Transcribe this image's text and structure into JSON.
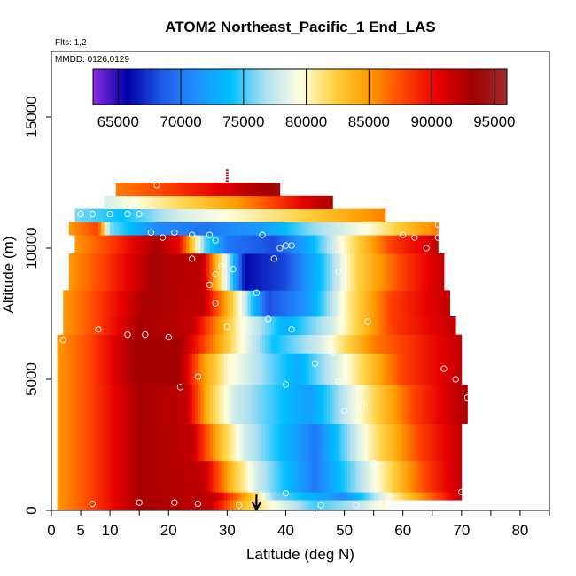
{
  "chart_data": {
    "type": "heatmap",
    "title": "ATOM2 Northeast_Pacific_1 End_LAS",
    "annotations": {
      "flights": "Flts: 1,2",
      "dates": "MMDD: 0126,0129"
    },
    "xlabel": "Latitude (deg N)",
    "ylabel": "Altitude (m)",
    "xlim": [
      0,
      85
    ],
    "ylim": [
      0,
      17500
    ],
    "x_ticks": [
      0,
      5,
      10,
      20,
      30,
      40,
      50,
      60,
      70,
      80
    ],
    "x_minor_ticks": [
      15,
      45,
      55,
      65,
      75,
      85
    ],
    "y_ticks": [
      0,
      5000,
      10000,
      15000
    ],
    "colorbar": {
      "range": [
        63000,
        96000
      ],
      "ticks": [
        65000,
        70000,
        75000,
        80000,
        85000,
        90000,
        95000
      ],
      "colors": [
        "#8a2be2",
        "#0000a8",
        "#1e5ae6",
        "#1e90ff",
        "#00bfff",
        "#b0e0f0",
        "#ffffe0",
        "#ffd040",
        "#ff9c00",
        "#ff4500",
        "#e60000",
        "#a00000",
        "#a52a2a"
      ]
    },
    "marker": {
      "latitude": 35,
      "label": "arrow"
    },
    "bands": [
      {
        "alt": [
          0,
          400
        ],
        "lat": [
          1,
          57
        ],
        "profile": [
          [
            1,
            85000
          ],
          [
            7,
            88000
          ],
          [
            15,
            93000
          ],
          [
            27,
            92000
          ],
          [
            33,
            83000
          ],
          [
            37,
            80000
          ],
          [
            45,
            75000
          ],
          [
            52,
            77000
          ],
          [
            57,
            80000
          ]
        ]
      },
      {
        "alt": [
          400,
          700
        ],
        "lat": [
          1,
          70
        ],
        "profile": [
          [
            1,
            85000
          ],
          [
            7,
            88000
          ],
          [
            15,
            93000
          ],
          [
            28,
            92000
          ],
          [
            34,
            83000
          ],
          [
            38,
            76000
          ],
          [
            50,
            71000
          ],
          [
            58,
            80000
          ],
          [
            66,
            88000
          ],
          [
            70,
            92000
          ]
        ]
      },
      {
        "alt": [
          700,
          1900
        ],
        "lat": [
          1,
          70
        ],
        "profile": [
          [
            1,
            85000
          ],
          [
            7,
            88000
          ],
          [
            15,
            93000
          ],
          [
            26,
            92000
          ],
          [
            31,
            83000
          ],
          [
            35,
            78000
          ],
          [
            45,
            70000
          ],
          [
            56,
            80000
          ],
          [
            64,
            88000
          ],
          [
            70,
            92000
          ]
        ]
      },
      {
        "alt": [
          1900,
          3300
        ],
        "lat": [
          1,
          70
        ],
        "profile": [
          [
            1,
            85000
          ],
          [
            7,
            88000
          ],
          [
            15,
            93000
          ],
          [
            24,
            92000
          ],
          [
            29,
            83000
          ],
          [
            33,
            78000
          ],
          [
            45,
            70000
          ],
          [
            54,
            80000
          ],
          [
            63,
            88000
          ],
          [
            70,
            92000
          ]
        ]
      },
      {
        "alt": [
          3300,
          4800
        ],
        "lat": [
          1,
          71
        ],
        "profile": [
          [
            1,
            85000
          ],
          [
            7,
            88000
          ],
          [
            15,
            93000
          ],
          [
            23,
            92000
          ],
          [
            27,
            83000
          ],
          [
            31,
            78000
          ],
          [
            44,
            72000
          ],
          [
            53,
            80000
          ],
          [
            62,
            88000
          ],
          [
            71,
            93000
          ]
        ]
      },
      {
        "alt": [
          4800,
          6000
        ],
        "lat": [
          1,
          70
        ],
        "profile": [
          [
            1,
            85000
          ],
          [
            7,
            88000
          ],
          [
            14,
            93000
          ],
          [
            22,
            93000
          ],
          [
            26,
            85000
          ],
          [
            30,
            80000
          ],
          [
            42,
            73000
          ],
          [
            51,
            80000
          ],
          [
            60,
            88000
          ],
          [
            70,
            92000
          ]
        ]
      },
      {
        "alt": [
          6000,
          6700
        ],
        "lat": [
          1,
          70
        ],
        "profile": [
          [
            1,
            85000
          ],
          [
            7,
            88000
          ],
          [
            14,
            93000
          ],
          [
            22,
            93000
          ],
          [
            26,
            88000
          ],
          [
            32,
            80000
          ],
          [
            38,
            74000
          ],
          [
            46,
            78000
          ],
          [
            55,
            86000
          ],
          [
            70,
            92000
          ]
        ]
      },
      {
        "alt": [
          6700,
          7400
        ],
        "lat": [
          2,
          69
        ],
        "profile": [
          [
            2,
            85000
          ],
          [
            8,
            88000
          ],
          [
            15,
            93000
          ],
          [
            24,
            92000
          ],
          [
            28,
            86000
          ],
          [
            32,
            80000
          ],
          [
            40,
            73000
          ],
          [
            48,
            78000
          ],
          [
            58,
            88000
          ],
          [
            69,
            92000
          ]
        ]
      },
      {
        "alt": [
          7400,
          8400
        ],
        "lat": [
          2,
          68
        ],
        "profile": [
          [
            2,
            85000
          ],
          [
            8,
            88000
          ],
          [
            16,
            93000
          ],
          [
            26,
            92000
          ],
          [
            29,
            86000
          ],
          [
            32,
            80000
          ],
          [
            37,
            68000
          ],
          [
            44,
            72000
          ],
          [
            50,
            80000
          ],
          [
            58,
            88000
          ],
          [
            68,
            92000
          ]
        ]
      },
      {
        "alt": [
          8400,
          9800
        ],
        "lat": [
          3,
          67
        ],
        "profile": [
          [
            3,
            85000
          ],
          [
            9,
            88000
          ],
          [
            17,
            93000
          ],
          [
            26,
            92000
          ],
          [
            28,
            84000
          ],
          [
            30,
            78000
          ],
          [
            33,
            66000
          ],
          [
            40,
            68000
          ],
          [
            46,
            74000
          ],
          [
            52,
            82000
          ],
          [
            60,
            88000
          ],
          [
            67,
            92000
          ]
        ]
      },
      {
        "alt": [
          9800,
          10500
        ],
        "lat": [
          4,
          66
        ],
        "profile": [
          [
            4,
            85000
          ],
          [
            10,
            88000
          ],
          [
            18,
            93000
          ],
          [
            22,
            90000
          ],
          [
            26,
            76000
          ],
          [
            30,
            70000
          ],
          [
            38,
            68000
          ],
          [
            44,
            73000
          ],
          [
            50,
            80000
          ],
          [
            58,
            88000
          ],
          [
            66,
            92000
          ]
        ]
      },
      {
        "alt": [
          10500,
          11000
        ],
        "lat": [
          3,
          66
        ],
        "profile": [
          [
            3,
            85000
          ],
          [
            8,
            88000
          ],
          [
            10,
            76000
          ],
          [
            18,
            71000
          ],
          [
            26,
            70000
          ],
          [
            36,
            72000
          ],
          [
            44,
            76000
          ],
          [
            55,
            80000
          ],
          [
            62,
            84000
          ],
          [
            66,
            86000
          ]
        ]
      },
      {
        "alt": [
          11000,
          11500
        ],
        "lat": [
          4,
          57
        ],
        "profile": [
          [
            4,
            76000
          ],
          [
            12,
            74000
          ],
          [
            22,
            78000
          ],
          [
            32,
            80000
          ],
          [
            42,
            82000
          ],
          [
            50,
            84000
          ],
          [
            57,
            86000
          ]
        ]
      },
      {
        "alt": [
          11500,
          12000
        ],
        "lat": [
          9,
          48
        ],
        "profile": [
          [
            9,
            78000
          ],
          [
            16,
            80000
          ],
          [
            26,
            83000
          ],
          [
            34,
            86000
          ],
          [
            42,
            90000
          ],
          [
            48,
            93000
          ]
        ]
      },
      {
        "alt": [
          12000,
          12500
        ],
        "lat": [
          11,
          39
        ],
        "profile": [
          [
            11,
            86000
          ],
          [
            20,
            88000
          ],
          [
            30,
            91000
          ],
          [
            39,
            94000
          ]
        ]
      }
    ],
    "points": [
      [
        7,
        250
      ],
      [
        15,
        300
      ],
      [
        21,
        300
      ],
      [
        25,
        250
      ],
      [
        32,
        200
      ],
      [
        40,
        650
      ],
      [
        46,
        200
      ],
      [
        52,
        200
      ],
      [
        56,
        250
      ],
      [
        70,
        700
      ],
      [
        55,
        1800
      ],
      [
        50,
        3800
      ],
      [
        53,
        4000
      ],
      [
        49,
        4900
      ],
      [
        40,
        4800
      ],
      [
        22,
        4700
      ],
      [
        25,
        5100
      ],
      [
        45,
        5600
      ],
      [
        48,
        6000
      ],
      [
        67,
        5400
      ],
      [
        69,
        5000
      ],
      [
        71,
        4300
      ],
      [
        2,
        6500
      ],
      [
        8,
        6900
      ],
      [
        13,
        6700
      ],
      [
        16,
        6700
      ],
      [
        20,
        6600
      ],
      [
        30,
        7000
      ],
      [
        37,
        7300
      ],
      [
        41,
        6900
      ],
      [
        54,
        7200
      ],
      [
        28,
        7900
      ],
      [
        35,
        8300
      ],
      [
        27,
        8600
      ],
      [
        28,
        9000
      ],
      [
        29,
        9300
      ],
      [
        31,
        9200
      ],
      [
        24,
        9600
      ],
      [
        38,
        9600
      ],
      [
        49,
        9100
      ],
      [
        39,
        10000
      ],
      [
        41,
        10100
      ],
      [
        40,
        10100
      ],
      [
        28,
        10300
      ],
      [
        36,
        10500
      ],
      [
        21,
        10600
      ],
      [
        24,
        10500
      ],
      [
        27,
        10500
      ],
      [
        17,
        10600
      ],
      [
        19,
        10400
      ],
      [
        62,
        10400
      ],
      [
        64,
        10000
      ],
      [
        66,
        10400
      ],
      [
        60,
        10500
      ],
      [
        66,
        10900
      ],
      [
        5,
        11300
      ],
      [
        7,
        11300
      ],
      [
        10,
        11300
      ],
      [
        13,
        11300
      ],
      [
        15,
        11300
      ],
      [
        10,
        12100
      ],
      [
        18,
        12400
      ]
    ]
  }
}
